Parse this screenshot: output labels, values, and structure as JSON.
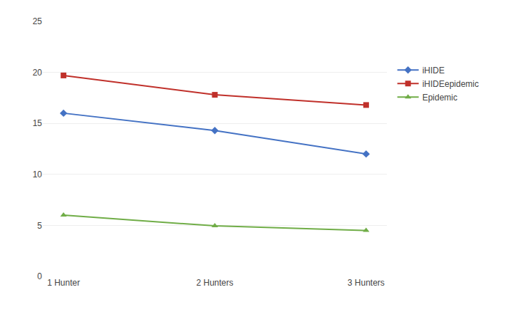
{
  "chart_data": {
    "type": "line",
    "categories": [
      "1 Hunter",
      "2 Hunters",
      "3 Hunters"
    ],
    "series": [
      {
        "name": "iHIDE",
        "color": "#4472C4",
        "marker": "diamond",
        "values": [
          16.0,
          14.3,
          12.0
        ]
      },
      {
        "name": "iHIDEepidemic",
        "color": "#C0302A",
        "marker": "square",
        "values": [
          19.7,
          17.8,
          16.8
        ]
      },
      {
        "name": "Epidemic",
        "color": "#70AD47",
        "marker": "triangle",
        "values": [
          6.0,
          4.95,
          4.5
        ]
      }
    ],
    "ylim": [
      0,
      25
    ],
    "yticks": [
      0,
      5,
      10,
      15,
      20,
      25
    ],
    "grid": true,
    "legend": "right"
  }
}
